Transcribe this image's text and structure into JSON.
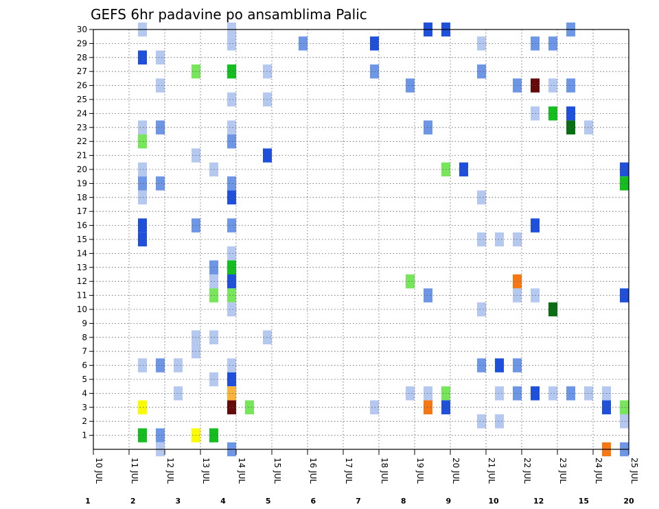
{
  "chart_data": {
    "type": "heatmap",
    "title": "GEFS 6hr padavine po ansamblima Palic",
    "x_tick_labels": [
      "10 JUL",
      "11 JUL",
      "12 JUL",
      "13 JUL",
      "14 JUL",
      "15 JUL",
      "16 JUL",
      "17 JUL",
      "18 JUL",
      "19 JUL",
      "20 JUL",
      "21 JUL",
      "22 JUL",
      "23 JUL",
      "24 JUL",
      "25 JUL"
    ],
    "xlim": [
      0,
      60
    ],
    "y_tick_labels": [
      "1",
      "2",
      "3",
      "4",
      "5",
      "6",
      "7",
      "8",
      "9",
      "10",
      "11",
      "12",
      "13",
      "14",
      "15",
      "16",
      "17",
      "18",
      "19",
      "20",
      "21",
      "22",
      "23",
      "24",
      "25",
      "26",
      "27",
      "28",
      "29",
      "30"
    ],
    "ylim": [
      0,
      30
    ],
    "grid": true,
    "legend": {
      "position": "bottom",
      "labels": [
        "1",
        "2",
        "3",
        "4",
        "5",
        "6",
        "7",
        "8",
        "9",
        "10",
        "12",
        "15",
        "20"
      ],
      "colors": [
        "#b4c8f0",
        "#6e96e6",
        "#1e50dc",
        "#78e65a",
        "#14be1e",
        "#0a6e14",
        "#fafa00",
        "#fab43c",
        "#f57814",
        "#e12d0a",
        "#960a0a",
        "#640a0a"
      ]
    },
    "cells": [
      [
        3,
        30,
        0
      ],
      [
        8,
        30,
        0
      ],
      [
        19,
        30,
        2
      ],
      [
        20,
        30,
        2
      ],
      [
        27,
        30,
        1
      ],
      [
        3,
        28,
        2
      ],
      [
        4,
        28,
        0
      ],
      [
        8,
        29,
        0
      ],
      [
        12,
        29,
        1
      ],
      [
        16,
        29,
        2
      ],
      [
        22,
        29,
        0
      ],
      [
        25,
        29,
        1
      ],
      [
        26,
        29,
        1
      ],
      [
        6,
        27,
        3
      ],
      [
        8,
        27,
        4
      ],
      [
        10,
        27,
        0
      ],
      [
        16,
        27,
        1
      ],
      [
        22,
        27,
        1
      ],
      [
        4,
        26,
        0
      ],
      [
        18,
        26,
        1
      ],
      [
        24,
        26,
        1
      ],
      [
        25,
        26,
        11
      ],
      [
        26,
        26,
        0
      ],
      [
        27,
        26,
        1
      ],
      [
        8,
        25,
        0
      ],
      [
        10,
        25,
        0
      ],
      [
        25,
        24,
        0
      ],
      [
        26,
        24,
        4
      ],
      [
        27,
        24,
        2
      ],
      [
        3,
        23,
        0
      ],
      [
        4,
        23,
        1
      ],
      [
        8,
        23,
        0
      ],
      [
        19,
        23,
        1
      ],
      [
        27,
        23,
        5
      ],
      [
        28,
        23,
        0
      ],
      [
        3,
        22,
        3
      ],
      [
        8,
        22,
        1
      ],
      [
        6,
        21,
        0
      ],
      [
        10,
        21,
        2
      ],
      [
        3,
        20,
        0
      ],
      [
        7,
        20,
        0
      ],
      [
        20,
        20,
        3
      ],
      [
        21,
        20,
        2
      ],
      [
        30,
        20,
        2
      ],
      [
        3,
        19,
        1
      ],
      [
        4,
        19,
        1
      ],
      [
        8,
        19,
        1
      ],
      [
        30,
        19,
        4
      ],
      [
        3,
        18,
        0
      ],
      [
        8,
        18,
        2
      ],
      [
        22,
        18,
        0
      ],
      [
        3,
        16,
        2
      ],
      [
        6,
        16,
        1
      ],
      [
        8,
        16,
        1
      ],
      [
        25,
        16,
        2
      ],
      [
        3,
        15,
        2
      ],
      [
        22,
        15,
        0
      ],
      [
        23,
        15,
        0
      ],
      [
        24,
        15,
        0
      ],
      [
        8,
        14,
        0
      ],
      [
        7,
        13,
        1
      ],
      [
        8,
        13,
        4
      ],
      [
        24,
        12,
        8
      ],
      [
        7,
        12,
        0
      ],
      [
        8,
        12,
        2
      ],
      [
        18,
        12,
        3
      ],
      [
        7,
        11,
        3
      ],
      [
        8,
        11,
        3
      ],
      [
        19,
        11,
        1
      ],
      [
        24,
        11,
        0
      ],
      [
        25,
        11,
        0
      ],
      [
        30,
        11,
        2
      ],
      [
        8,
        10,
        0
      ],
      [
        22,
        10,
        0
      ],
      [
        26,
        10,
        5
      ],
      [
        6,
        8,
        0
      ],
      [
        7,
        8,
        0
      ],
      [
        10,
        8,
        0
      ],
      [
        6,
        7,
        0
      ],
      [
        3,
        6,
        0
      ],
      [
        4,
        6,
        1
      ],
      [
        5,
        6,
        0
      ],
      [
        8,
        6,
        0
      ],
      [
        22,
        6,
        1
      ],
      [
        23,
        6,
        2
      ],
      [
        24,
        6,
        1
      ],
      [
        7,
        5,
        0
      ],
      [
        8,
        5,
        2
      ],
      [
        5,
        4,
        0
      ],
      [
        8,
        4,
        7
      ],
      [
        18,
        4,
        0
      ],
      [
        19,
        4,
        0
      ],
      [
        20,
        4,
        3
      ],
      [
        23,
        4,
        0
      ],
      [
        24,
        4,
        1
      ],
      [
        25,
        4,
        2
      ],
      [
        26,
        4,
        0
      ],
      [
        27,
        4,
        1
      ],
      [
        28,
        4,
        0
      ],
      [
        29,
        4,
        0
      ],
      [
        3,
        3,
        6
      ],
      [
        8,
        3,
        11
      ],
      [
        9,
        3,
        3
      ],
      [
        16,
        3,
        0
      ],
      [
        19,
        3,
        8
      ],
      [
        20,
        3,
        2
      ],
      [
        29,
        3,
        2
      ],
      [
        30,
        3,
        3
      ],
      [
        22,
        2,
        0
      ],
      [
        23,
        2,
        0
      ],
      [
        30,
        2,
        0
      ],
      [
        3,
        1,
        4
      ],
      [
        4,
        1,
        1
      ],
      [
        6,
        1,
        6
      ],
      [
        7,
        1,
        4
      ],
      [
        4,
        0,
        0
      ],
      [
        8,
        0,
        1
      ],
      [
        29,
        0,
        8
      ],
      [
        30,
        0,
        1
      ]
    ]
  }
}
